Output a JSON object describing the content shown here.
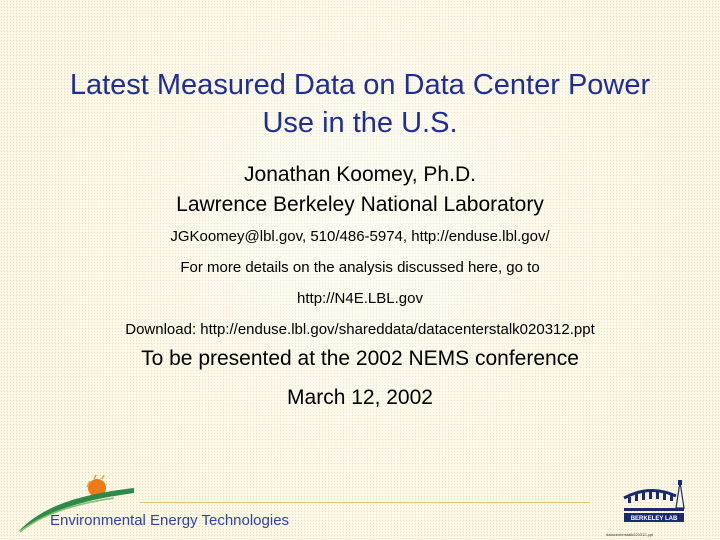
{
  "slide": {
    "title_line1": "Latest Measured Data on Data Center Power",
    "title_line2": "Use in the U.S.",
    "author": "Jonathan Koomey, Ph.D.",
    "organization": "Lawrence Berkeley National Laboratory",
    "contact": "JGKoomey@lbl.gov, 510/486-5974, http://enduse.lbl.gov/",
    "details": "For more details on the analysis discussed here, go to",
    "details_url": "http://N4E.LBL.gov",
    "download": "Download: http://enduse.lbl.gov/shareddata/datacenterstalk020312.ppt",
    "presented": "To be presented at the 2002 NEMS conference",
    "date": "March 12, 2002"
  },
  "footer": {
    "program": "Environmental Energy Technologies",
    "berkeley_logo_text": "BERKELEY LAB",
    "filename": "datacenterstalk020312.ppt"
  },
  "colors": {
    "title": "#1f2d96",
    "footer_text": "#2f42a8",
    "swoosh": "#2e8a4a",
    "sun": "#f07a18"
  }
}
